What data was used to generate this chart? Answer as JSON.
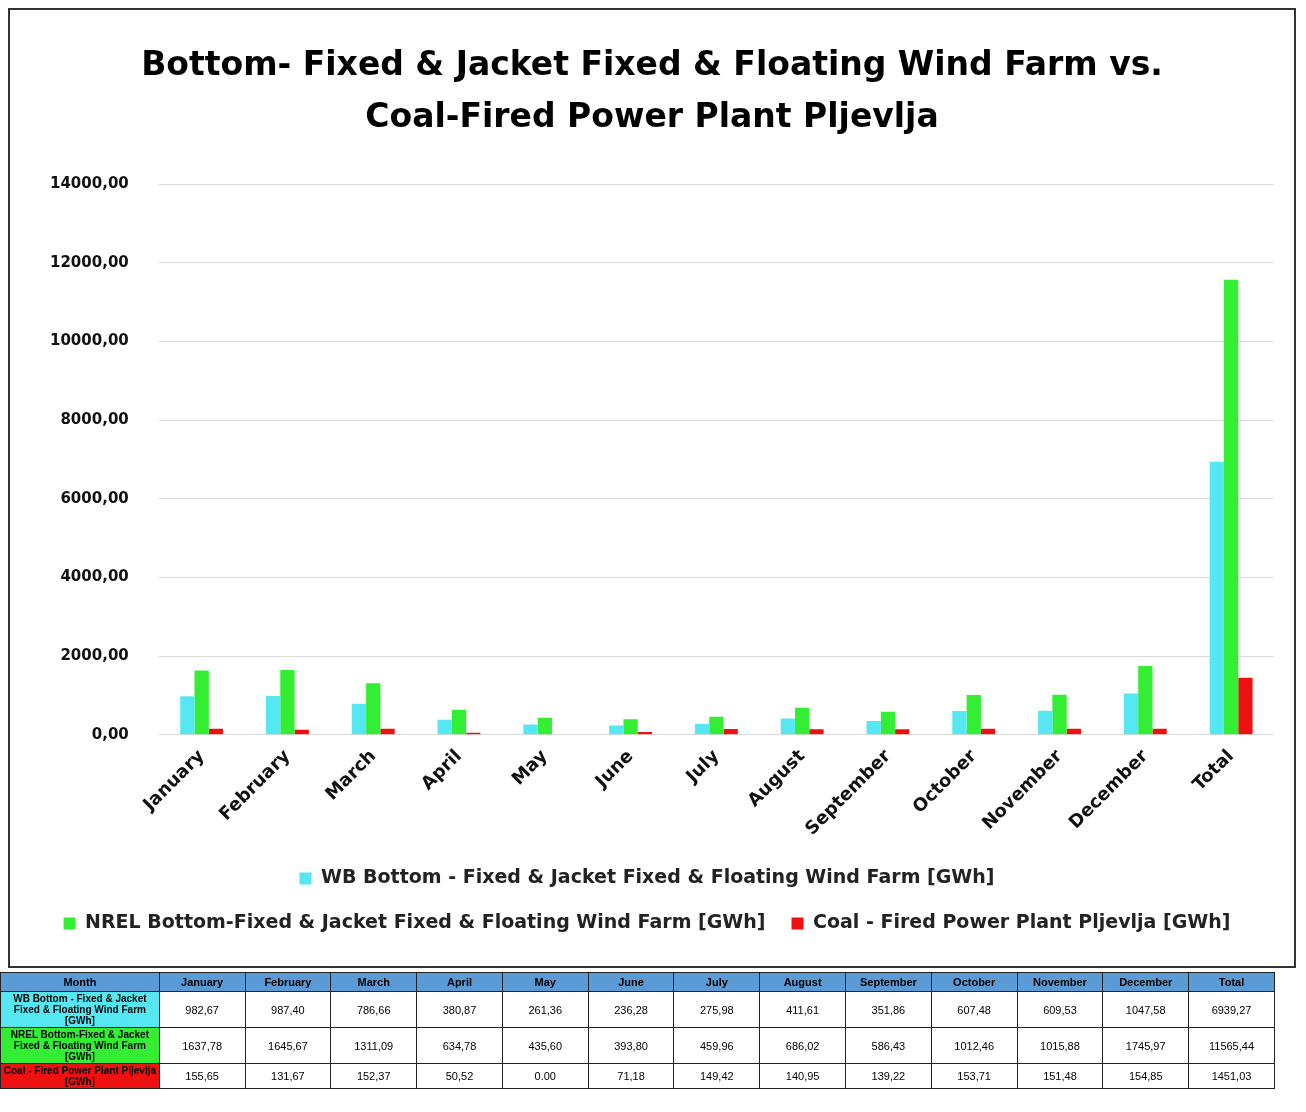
{
  "chart_data": {
    "type": "bar",
    "title": "Bottom- Fixed & Jacket Fixed & Floating Wind Farm vs. Coal-Fired Power Plant Pljevlja",
    "annotations": [
      "Month"
    ],
    "categories": [
      "January",
      "February",
      "March",
      "April",
      "May",
      "June",
      "July",
      "August",
      "September",
      "October",
      "November",
      "December",
      "Total"
    ],
    "series": [
      {
        "name": "WB Bottom - Fixed & Jacket Fixed & Floating Wind Farm [GWh]",
        "color": "#55e8f2",
        "values": [
          982.67,
          987.4,
          786.66,
          380.87,
          261.36,
          236.28,
          275.98,
          411.61,
          351.86,
          607.48,
          609.53,
          1047.58,
          6939.27
        ],
        "value_labels": [
          "982,67",
          "987,40",
          "786,66",
          "380,87",
          "261,36",
          "236,28",
          "275,98",
          "411,61",
          "351,86",
          "607,48",
          "609,53",
          "1047,58",
          "6939,27"
        ]
      },
      {
        "name": "NREL Bottom-Fixed & Jacket Fixed & Floating Wind Farm [GWh]",
        "color": "#33ee33",
        "values": [
          1637.78,
          1645.67,
          1311.09,
          634.78,
          435.6,
          393.8,
          459.96,
          686.02,
          586.43,
          1012.46,
          1015.88,
          1745.97,
          11565.44
        ],
        "value_labels": [
          "1637,78",
          "1645,67",
          "1311,09",
          "634,78",
          "435,60",
          "393,80",
          "459,96",
          "686,02",
          "586,43",
          "1012,46",
          "1015,88",
          "1745,97",
          "11565,44"
        ]
      },
      {
        "name": "Coal - Fired Power Plant Pljevlja [GWh]",
        "color": "#ee1111",
        "values": [
          155.65,
          131.67,
          152.37,
          50.52,
          0.0,
          71.18,
          149.42,
          140.95,
          139.22,
          153.71,
          151.48,
          154.85,
          1451.03
        ],
        "value_labels": [
          "155,65",
          "131,67",
          "152,37",
          "50,52",
          "0.00",
          "71,18",
          "149,42",
          "140,95",
          "139,22",
          "153,71",
          "151,48",
          "154,85",
          "1451,03"
        ]
      }
    ],
    "ylim": [
      0,
      14000
    ],
    "yticks": [
      {
        "value": 0,
        "label": "0,00"
      },
      {
        "value": 2000,
        "label": "2000,00"
      },
      {
        "value": 4000,
        "label": "4000,00"
      },
      {
        "value": 6000,
        "label": "6000,00"
      },
      {
        "value": 8000,
        "label": "8000,00"
      },
      {
        "value": 10000,
        "label": "10000,00"
      },
      {
        "value": 12000,
        "label": "12000,00"
      },
      {
        "value": 14000,
        "label": "14000,00"
      }
    ],
    "grid": "y",
    "legend": "bottom"
  }
}
